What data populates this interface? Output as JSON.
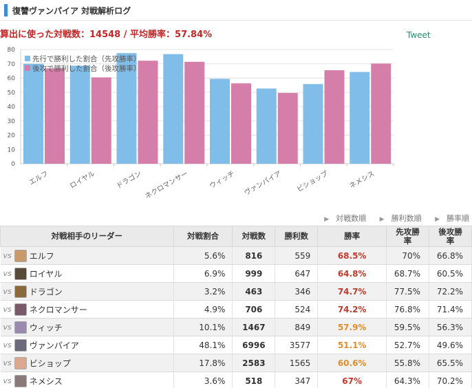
{
  "header": {
    "title": "復讐ヴァンパイア 対戦解析ログ"
  },
  "summary": "算出に使った対戦数：14548 / 平均勝率：57.84%",
  "tweet_label": "Tweet",
  "sort_links": [
    "対戦数順",
    "勝利数順",
    "勝率順"
  ],
  "colors": {
    "first": "#80bde8",
    "second": "#d57ea9",
    "win_high": "#c0392b",
    "win_mid": "#e08d2c"
  },
  "chart_data": {
    "type": "bar",
    "categories": [
      "エルフ",
      "ロイヤル",
      "ドラゴン",
      "ネクロマンサー",
      "ウィッチ",
      "ヴァンパイア",
      "ビショップ",
      "ネメシス"
    ],
    "series": [
      {
        "name": "先行で勝利した割合（先攻勝率）",
        "values": [
          70,
          68.7,
          77.5,
          76.8,
          59.5,
          52.7,
          55.8,
          64.3
        ]
      },
      {
        "name": "後攻で勝利した割合（後攻勝率）",
        "values": [
          66.8,
          60.5,
          72.2,
          71.4,
          56.3,
          49.6,
          65.5,
          70.2
        ]
      }
    ],
    "ylim": [
      0,
      80
    ],
    "yticks": [
      0,
      10,
      20,
      30,
      40,
      50,
      60,
      70,
      80
    ],
    "grid": true,
    "legend": "top-left"
  },
  "table": {
    "headers": [
      "対戦相手のリーダー",
      "対戦割合",
      "対戦数",
      "勝利数",
      "勝率",
      "先攻勝率",
      "後攻勝率"
    ],
    "vs_label": "vs",
    "rows": [
      {
        "leader": "エルフ",
        "share": "5.6%",
        "games": "816",
        "wins": "559",
        "winrate": "68.5%",
        "first": "70%",
        "second": "66.8%",
        "avatar": "#c89a6a"
      },
      {
        "leader": "ロイヤル",
        "share": "6.9%",
        "games": "999",
        "wins": "647",
        "winrate": "64.8%",
        "first": "68.7%",
        "second": "60.5%",
        "avatar": "#5a4a3a"
      },
      {
        "leader": "ドラゴン",
        "share": "3.2%",
        "games": "463",
        "wins": "346",
        "winrate": "74.7%",
        "first": "77.5%",
        "second": "72.2%",
        "avatar": "#8a6a3a"
      },
      {
        "leader": "ネクロマンサー",
        "share": "4.9%",
        "games": "706",
        "wins": "524",
        "winrate": "74.2%",
        "first": "76.8%",
        "second": "71.4%",
        "avatar": "#7a5a6a"
      },
      {
        "leader": "ウィッチ",
        "share": "10.1%",
        "games": "1467",
        "wins": "849",
        "winrate": "57.9%",
        "first": "59.5%",
        "second": "56.3%",
        "avatar": "#9a8ab0"
      },
      {
        "leader": "ヴァンパイア",
        "share": "48.1%",
        "games": "6996",
        "wins": "3577",
        "winrate": "51.1%",
        "first": "52.7%",
        "second": "49.6%",
        "avatar": "#6a6a7a"
      },
      {
        "leader": "ビショップ",
        "share": "17.8%",
        "games": "2583",
        "wins": "1565",
        "winrate": "60.6%",
        "first": "55.8%",
        "second": "65.5%",
        "avatar": "#d8a890"
      },
      {
        "leader": "ネメシス",
        "share": "3.6%",
        "games": "518",
        "wins": "347",
        "winrate": "67%",
        "first": "64.3%",
        "second": "70.2%",
        "avatar": "#8a7a7a"
      }
    ]
  }
}
